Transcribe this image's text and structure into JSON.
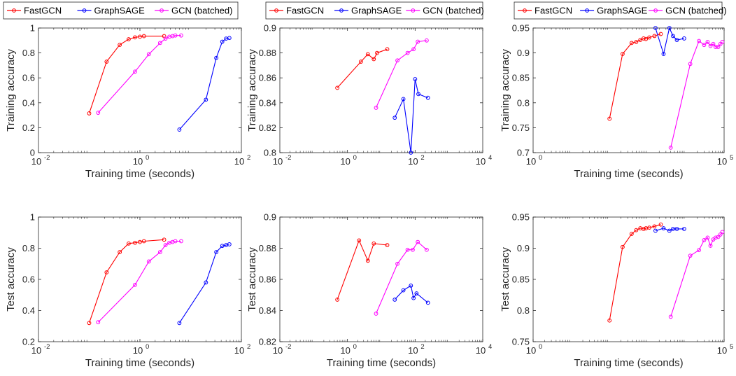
{
  "legend": [
    "FastGCN",
    "GraphSAGE",
    "GCN (batched)"
  ],
  "colors": {
    "FastGCN": "#ff0000",
    "GraphSAGE": "#0000ff",
    "GCN (batched)": "#ff00ff"
  },
  "chart_data": [
    {
      "type": "line",
      "xscale": "log",
      "xlim": [
        0.01,
        100
      ],
      "xticks": [
        0.01,
        1,
        100
      ],
      "ylim": [
        0,
        1
      ],
      "yticks": [
        0,
        0.2,
        0.4,
        0.6,
        0.8,
        1
      ],
      "xlabel": "Training time (seconds)",
      "ylabel": "Training accuracy",
      "series": [
        {
          "name": "FastGCN",
          "x": [
            0.1,
            0.22,
            0.4,
            0.6,
            0.8,
            1.0,
            1.2,
            3.0
          ],
          "y": [
            0.315,
            0.73,
            0.865,
            0.91,
            0.925,
            0.93,
            0.935,
            0.935
          ]
        },
        {
          "name": "GraphSAGE",
          "x": [
            6,
            20,
            32,
            42,
            50,
            58
          ],
          "y": [
            0.185,
            0.425,
            0.76,
            0.89,
            0.915,
            0.92
          ]
        },
        {
          "name": "GCN (batched)",
          "x": [
            0.15,
            0.8,
            1.5,
            2.5,
            3.2,
            3.8,
            4.4,
            5.0,
            6.5
          ],
          "y": [
            0.32,
            0.65,
            0.79,
            0.88,
            0.915,
            0.93,
            0.935,
            0.94,
            0.94
          ]
        }
      ]
    },
    {
      "type": "line",
      "xscale": "log",
      "xlim": [
        0.01,
        10000
      ],
      "xticks": [
        0.01,
        1,
        100,
        10000
      ],
      "ylim": [
        0.8,
        0.9
      ],
      "yticks": [
        0.8,
        0.82,
        0.84,
        0.86,
        0.88,
        0.9
      ],
      "xlabel": "",
      "ylabel": "Training accuracy",
      "series": [
        {
          "name": "FastGCN",
          "x": [
            0.5,
            2.5,
            4,
            6,
            7.5,
            15
          ],
          "y": [
            0.852,
            0.873,
            0.879,
            0.875,
            0.88,
            0.883
          ]
        },
        {
          "name": "GraphSAGE",
          "x": [
            25,
            45,
            75,
            100,
            125,
            240
          ],
          "y": [
            0.828,
            0.843,
            0.8,
            0.859,
            0.847,
            0.844
          ]
        },
        {
          "name": "GCN (batched)",
          "x": [
            7,
            30,
            60,
            90,
            120,
            220
          ],
          "y": [
            0.836,
            0.874,
            0.88,
            0.883,
            0.889,
            0.89
          ]
        }
      ]
    },
    {
      "type": "line",
      "xscale": "log",
      "xlim": [
        1,
        100000
      ],
      "xticks": [
        1,
        100000
      ],
      "ylim": [
        0.7,
        0.95
      ],
      "yticks": [
        0.7,
        0.75,
        0.8,
        0.85,
        0.9,
        0.95
      ],
      "xlabel": "Training time (seconds)",
      "ylabel": "Training accuracy",
      "series": [
        {
          "name": "FastGCN",
          "x": [
            100,
            220,
            380,
            500,
            640,
            780,
            900,
            1100,
            1500,
            2200
          ],
          "y": [
            0.768,
            0.898,
            0.92,
            0.922,
            0.926,
            0.929,
            0.928,
            0.931,
            0.934,
            0.938
          ]
        },
        {
          "name": "GraphSAGE",
          "x": [
            1600,
            2600,
            3700,
            4600,
            5800,
            9000
          ],
          "y": [
            0.95,
            0.898,
            0.95,
            0.934,
            0.926,
            0.929
          ]
        },
        {
          "name": "GCN (batched)",
          "x": [
            4000,
            13000,
            22000,
            30000,
            37000,
            44000,
            52000,
            60000,
            70000,
            80000,
            90000
          ],
          "y": [
            0.71,
            0.878,
            0.924,
            0.916,
            0.922,
            0.914,
            0.918,
            0.912,
            0.912,
            0.918,
            0.922
          ]
        }
      ]
    },
    {
      "type": "line",
      "xscale": "log",
      "xlim": [
        0.01,
        100
      ],
      "xticks": [
        0.01,
        1,
        100
      ],
      "ylim": [
        0.2,
        1
      ],
      "yticks": [
        0.2,
        0.4,
        0.6,
        0.8,
        1
      ],
      "xlabel": "Training time (seconds)",
      "ylabel": "Test accuracy",
      "series": [
        {
          "name": "FastGCN",
          "x": [
            0.1,
            0.22,
            0.4,
            0.6,
            0.8,
            1.0,
            1.2,
            3.0
          ],
          "y": [
            0.32,
            0.645,
            0.775,
            0.83,
            0.835,
            0.84,
            0.845,
            0.855
          ]
        },
        {
          "name": "GraphSAGE",
          "x": [
            6,
            20,
            32,
            42,
            50,
            58
          ],
          "y": [
            0.32,
            0.58,
            0.775,
            0.815,
            0.82,
            0.825
          ]
        },
        {
          "name": "GCN (batched)",
          "x": [
            0.15,
            0.8,
            1.5,
            2.5,
            3.2,
            3.8,
            4.4,
            5.0,
            6.5
          ],
          "y": [
            0.325,
            0.565,
            0.715,
            0.775,
            0.82,
            0.835,
            0.84,
            0.845,
            0.845
          ]
        }
      ]
    },
    {
      "type": "line",
      "xscale": "log",
      "xlim": [
        0.01,
        10000
      ],
      "xticks": [
        0.01,
        1,
        100,
        10000
      ],
      "ylim": [
        0.82,
        0.9
      ],
      "yticks": [
        0.82,
        0.84,
        0.86,
        0.88,
        0.9
      ],
      "xlabel": "Training time (seconds)",
      "ylabel": "Test accuracy",
      "series": [
        {
          "name": "FastGCN",
          "x": [
            0.5,
            2.2,
            4,
            6,
            15
          ],
          "y": [
            0.847,
            0.885,
            0.872,
            0.883,
            0.882
          ]
        },
        {
          "name": "GraphSAGE",
          "x": [
            25,
            45,
            75,
            90,
            110,
            240
          ],
          "y": [
            0.847,
            0.853,
            0.856,
            0.848,
            0.851,
            0.845
          ]
        },
        {
          "name": "GCN (batched)",
          "x": [
            7,
            30,
            60,
            85,
            120,
            220
          ],
          "y": [
            0.838,
            0.87,
            0.879,
            0.879,
            0.884,
            0.879
          ]
        }
      ]
    },
    {
      "type": "line",
      "xscale": "log",
      "xlim": [
        1,
        100000
      ],
      "xticks": [
        1,
        100000
      ],
      "ylim": [
        0.75,
        0.95
      ],
      "yticks": [
        0.75,
        0.8,
        0.85,
        0.9,
        0.95
      ],
      "xlabel": "Training time (seconds)",
      "ylabel": "Test accuracy",
      "series": [
        {
          "name": "FastGCN",
          "x": [
            100,
            220,
            380,
            500,
            640,
            780,
            900,
            1100,
            1500,
            2200
          ],
          "y": [
            0.784,
            0.902,
            0.923,
            0.929,
            0.932,
            0.931,
            0.932,
            0.933,
            0.935,
            0.938
          ]
        },
        {
          "name": "GraphSAGE",
          "x": [
            1600,
            2600,
            3700,
            4600,
            5800,
            9000
          ],
          "y": [
            0.928,
            0.932,
            0.928,
            0.931,
            0.931,
            0.931
          ]
        },
        {
          "name": "GCN (batched)",
          "x": [
            4000,
            13000,
            22000,
            30000,
            37000,
            44000,
            52000,
            60000,
            70000,
            80000,
            90000
          ],
          "y": [
            0.79,
            0.888,
            0.897,
            0.913,
            0.917,
            0.904,
            0.914,
            0.917,
            0.918,
            0.922,
            0.926
          ]
        }
      ]
    }
  ]
}
